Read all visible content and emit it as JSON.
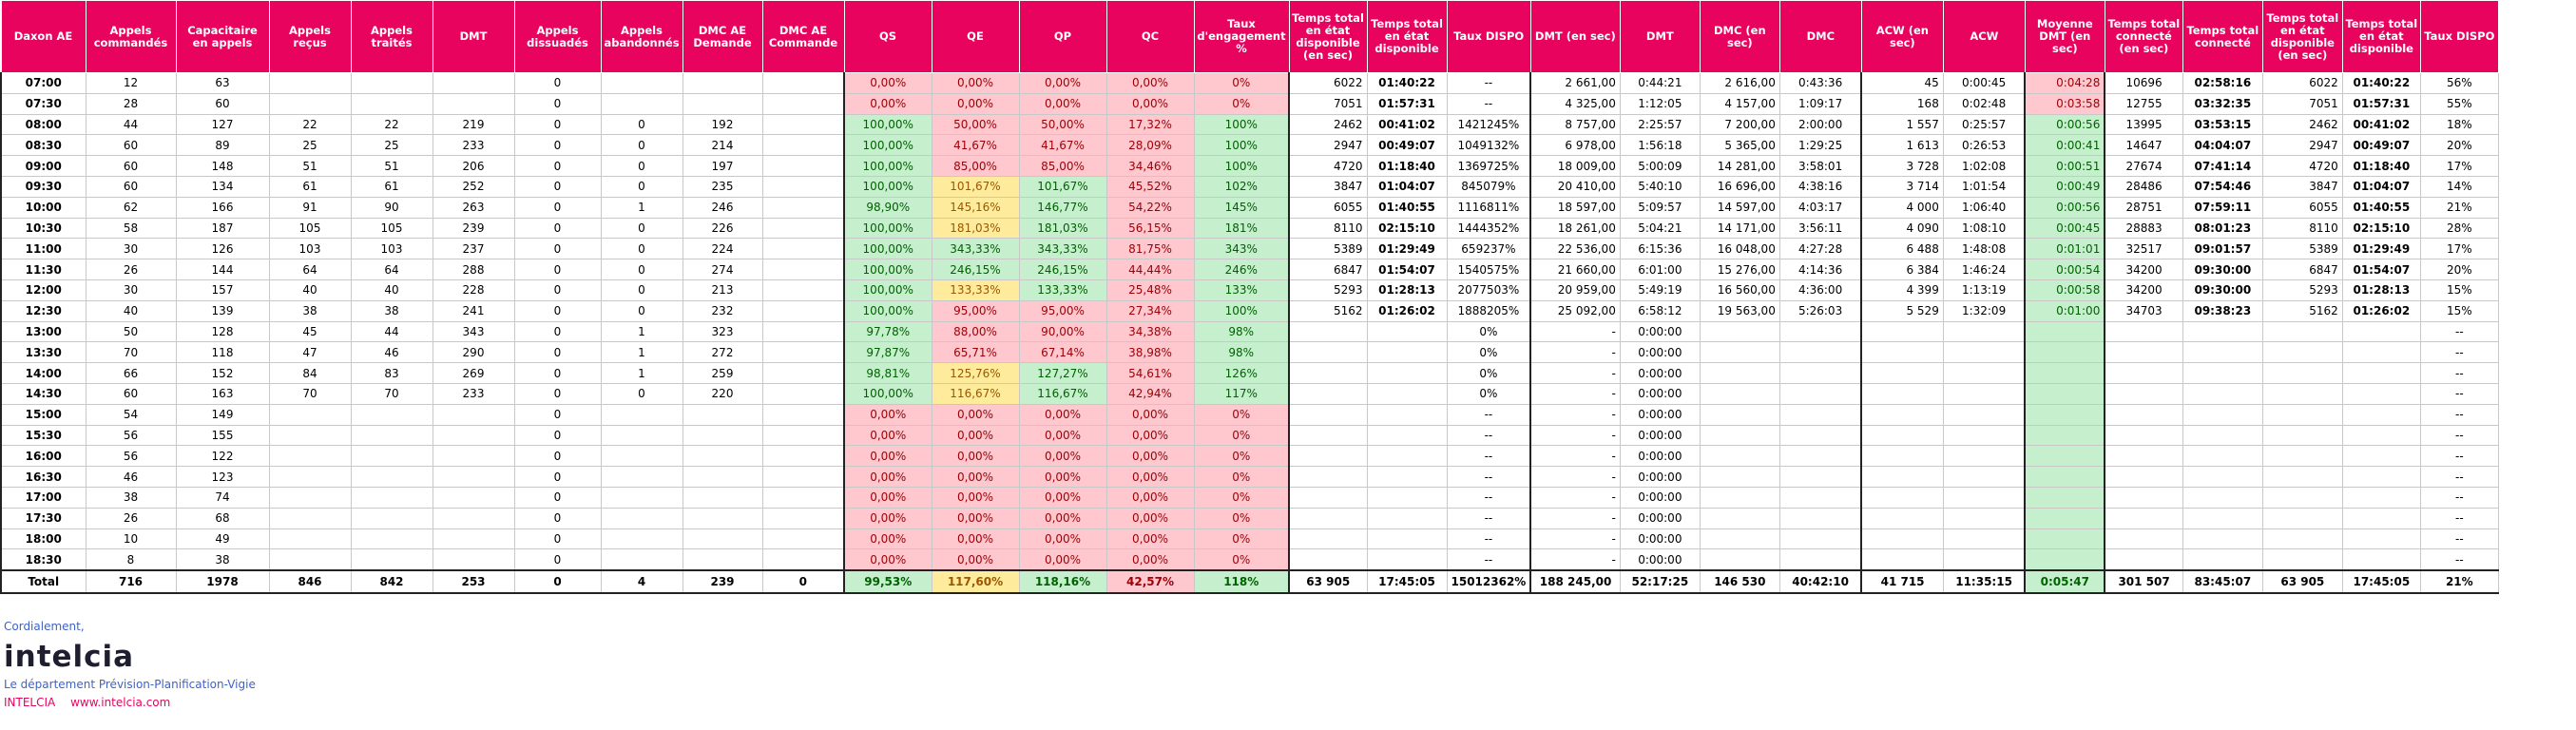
{
  "headers": [
    "Daxon AE",
    "Appels commandés",
    "Capacitaire en appels",
    "Appels reçus",
    "Appels traités",
    "DMT",
    "Appels dissuadés",
    "Appels abandonnés",
    "DMC AE Demande",
    "DMC AE Commande",
    "QS",
    "QE",
    "QP",
    "QC",
    "Taux d'engagement %",
    "Temps total en état disponible (en sec)",
    "Temps total en état disponible",
    "Taux DISPO",
    "DMT (en sec)",
    "DMT",
    "DMC (en sec)",
    "DMC",
    "ACW (en sec)",
    "ACW",
    "Moyenne DMT (en sec)",
    "Temps total connecté (en sec)",
    "Temps total connecté",
    "Temps total en état disponible (en sec)",
    "Temps total en état disponible",
    "Taux DISPO"
  ],
  "rows": [
    [
      "07:00",
      "12",
      "63",
      "",
      "",
      "",
      "0",
      "",
      "",
      "",
      "0,00%",
      "0,00%",
      "0,00%",
      "0,00%",
      "0%",
      "6022",
      "01:40:22",
      "--",
      "2 661,00",
      "0:44:21",
      "2 616,00",
      "0:43:36",
      "45",
      "0:00:45",
      "0:04:28",
      "10696",
      "02:58:16",
      "6022",
      "01:40:22",
      "56%"
    ],
    [
      "07:30",
      "28",
      "60",
      "",
      "",
      "",
      "0",
      "",
      "",
      "",
      "0,00%",
      "0,00%",
      "0,00%",
      "0,00%",
      "0%",
      "7051",
      "01:57:31",
      "--",
      "4 325,00",
      "1:12:05",
      "4 157,00",
      "1:09:17",
      "168",
      "0:02:48",
      "0:03:58",
      "12755",
      "03:32:35",
      "7051",
      "01:57:31",
      "55%"
    ],
    [
      "08:00",
      "44",
      "127",
      "22",
      "22",
      "219",
      "0",
      "0",
      "192",
      "",
      "100,00%",
      "50,00%",
      "50,00%",
      "17,32%",
      "100%",
      "2462",
      "00:41:02",
      "1421245%",
      "8 757,00",
      "2:25:57",
      "7 200,00",
      "2:00:00",
      "1 557",
      "0:25:57",
      "0:00:56",
      "13995",
      "03:53:15",
      "2462",
      "00:41:02",
      "18%"
    ],
    [
      "08:30",
      "60",
      "89",
      "25",
      "25",
      "233",
      "0",
      "0",
      "214",
      "",
      "100,00%",
      "41,67%",
      "41,67%",
      "28,09%",
      "100%",
      "2947",
      "00:49:07",
      "1049132%",
      "6 978,00",
      "1:56:18",
      "5 365,00",
      "1:29:25",
      "1 613",
      "0:26:53",
      "0:00:41",
      "14647",
      "04:04:07",
      "2947",
      "00:49:07",
      "20%"
    ],
    [
      "09:00",
      "60",
      "148",
      "51",
      "51",
      "206",
      "0",
      "0",
      "197",
      "",
      "100,00%",
      "85,00%",
      "85,00%",
      "34,46%",
      "100%",
      "4720",
      "01:18:40",
      "1369725%",
      "18 009,00",
      "5:00:09",
      "14 281,00",
      "3:58:01",
      "3 728",
      "1:02:08",
      "0:00:51",
      "27674",
      "07:41:14",
      "4720",
      "01:18:40",
      "17%"
    ],
    [
      "09:30",
      "60",
      "134",
      "61",
      "61",
      "252",
      "0",
      "0",
      "235",
      "",
      "100,00%",
      "101,67%",
      "101,67%",
      "45,52%",
      "102%",
      "3847",
      "01:04:07",
      "845079%",
      "20 410,00",
      "5:40:10",
      "16 696,00",
      "4:38:16",
      "3 714",
      "1:01:54",
      "0:00:49",
      "28486",
      "07:54:46",
      "3847",
      "01:04:07",
      "14%"
    ],
    [
      "10:00",
      "62",
      "166",
      "91",
      "90",
      "263",
      "0",
      "1",
      "246",
      "",
      "98,90%",
      "145,16%",
      "146,77%",
      "54,22%",
      "145%",
      "6055",
      "01:40:55",
      "1116811%",
      "18 597,00",
      "5:09:57",
      "14 597,00",
      "4:03:17",
      "4 000",
      "1:06:40",
      "0:00:56",
      "28751",
      "07:59:11",
      "6055",
      "01:40:55",
      "21%"
    ],
    [
      "10:30",
      "58",
      "187",
      "105",
      "105",
      "239",
      "0",
      "0",
      "226",
      "",
      "100,00%",
      "181,03%",
      "181,03%",
      "56,15%",
      "181%",
      "8110",
      "02:15:10",
      "1444352%",
      "18 261,00",
      "5:04:21",
      "14 171,00",
      "3:56:11",
      "4 090",
      "1:08:10",
      "0:00:45",
      "28883",
      "08:01:23",
      "8110",
      "02:15:10",
      "28%"
    ],
    [
      "11:00",
      "30",
      "126",
      "103",
      "103",
      "237",
      "0",
      "0",
      "224",
      "",
      "100,00%",
      "343,33%",
      "343,33%",
      "81,75%",
      "343%",
      "5389",
      "01:29:49",
      "659237%",
      "22 536,00",
      "6:15:36",
      "16 048,00",
      "4:27:28",
      "6 488",
      "1:48:08",
      "0:01:01",
      "32517",
      "09:01:57",
      "5389",
      "01:29:49",
      "17%"
    ],
    [
      "11:30",
      "26",
      "144",
      "64",
      "64",
      "288",
      "0",
      "0",
      "274",
      "",
      "100,00%",
      "246,15%",
      "246,15%",
      "44,44%",
      "246%",
      "6847",
      "01:54:07",
      "1540575%",
      "21 660,00",
      "6:01:00",
      "15 276,00",
      "4:14:36",
      "6 384",
      "1:46:24",
      "0:00:54",
      "34200",
      "09:30:00",
      "6847",
      "01:54:07",
      "20%"
    ],
    [
      "12:00",
      "30",
      "157",
      "40",
      "40",
      "228",
      "0",
      "0",
      "213",
      "",
      "100,00%",
      "133,33%",
      "133,33%",
      "25,48%",
      "133%",
      "5293",
      "01:28:13",
      "2077503%",
      "20 959,00",
      "5:49:19",
      "16 560,00",
      "4:36:00",
      "4 399",
      "1:13:19",
      "0:00:58",
      "34200",
      "09:30:00",
      "5293",
      "01:28:13",
      "15%"
    ],
    [
      "12:30",
      "40",
      "139",
      "38",
      "38",
      "241",
      "0",
      "0",
      "232",
      "",
      "100,00%",
      "95,00%",
      "95,00%",
      "27,34%",
      "100%",
      "5162",
      "01:26:02",
      "1888205%",
      "25 092,00",
      "6:58:12",
      "19 563,00",
      "5:26:03",
      "5 529",
      "1:32:09",
      "0:01:00",
      "34703",
      "09:38:23",
      "5162",
      "01:26:02",
      "15%"
    ],
    [
      "13:00",
      "50",
      "128",
      "45",
      "44",
      "343",
      "0",
      "1",
      "323",
      "",
      "97,78%",
      "88,00%",
      "90,00%",
      "34,38%",
      "98%",
      "",
      "",
      "0%",
      "-",
      "0:00:00",
      "",
      "",
      "",
      "",
      "",
      "",
      "",
      "",
      "",
      "--"
    ],
    [
      "13:30",
      "70",
      "118",
      "47",
      "46",
      "290",
      "0",
      "1",
      "272",
      "",
      "97,87%",
      "65,71%",
      "67,14%",
      "38,98%",
      "98%",
      "",
      "",
      "0%",
      "-",
      "0:00:00",
      "",
      "",
      "",
      "",
      "",
      "",
      "",
      "",
      "",
      "--"
    ],
    [
      "14:00",
      "66",
      "152",
      "84",
      "83",
      "269",
      "0",
      "1",
      "259",
      "",
      "98,81%",
      "125,76%",
      "127,27%",
      "54,61%",
      "126%",
      "",
      "",
      "0%",
      "-",
      "0:00:00",
      "",
      "",
      "",
      "",
      "",
      "",
      "",
      "",
      "",
      "--"
    ],
    [
      "14:30",
      "60",
      "163",
      "70",
      "70",
      "233",
      "0",
      "0",
      "220",
      "",
      "100,00%",
      "116,67%",
      "116,67%",
      "42,94%",
      "117%",
      "",
      "",
      "0%",
      "-",
      "0:00:00",
      "",
      "",
      "",
      "",
      "",
      "",
      "",
      "",
      "",
      "--"
    ],
    [
      "15:00",
      "54",
      "149",
      "",
      "",
      "",
      "0",
      "",
      "",
      "",
      "0,00%",
      "0,00%",
      "0,00%",
      "0,00%",
      "0%",
      "",
      "",
      "--",
      "-",
      "0:00:00",
      "",
      "",
      "",
      "",
      "",
      "",
      "",
      "",
      "",
      "--"
    ],
    [
      "15:30",
      "56",
      "155",
      "",
      "",
      "",
      "0",
      "",
      "",
      "",
      "0,00%",
      "0,00%",
      "0,00%",
      "0,00%",
      "0%",
      "",
      "",
      "--",
      "-",
      "0:00:00",
      "",
      "",
      "",
      "",
      "",
      "",
      "",
      "",
      "",
      "--"
    ],
    [
      "16:00",
      "56",
      "122",
      "",
      "",
      "",
      "0",
      "",
      "",
      "",
      "0,00%",
      "0,00%",
      "0,00%",
      "0,00%",
      "0%",
      "",
      "",
      "--",
      "-",
      "0:00:00",
      "",
      "",
      "",
      "",
      "",
      "",
      "",
      "",
      "",
      "--"
    ],
    [
      "16:30",
      "46",
      "123",
      "",
      "",
      "",
      "0",
      "",
      "",
      "",
      "0,00%",
      "0,00%",
      "0,00%",
      "0,00%",
      "0%",
      "",
      "",
      "--",
      "-",
      "0:00:00",
      "",
      "",
      "",
      "",
      "",
      "",
      "",
      "",
      "",
      "--"
    ],
    [
      "17:00",
      "38",
      "74",
      "",
      "",
      "",
      "0",
      "",
      "",
      "",
      "0,00%",
      "0,00%",
      "0,00%",
      "0,00%",
      "0%",
      "",
      "",
      "--",
      "-",
      "0:00:00",
      "",
      "",
      "",
      "",
      "",
      "",
      "",
      "",
      "",
      "--"
    ],
    [
      "17:30",
      "26",
      "68",
      "",
      "",
      "",
      "0",
      "",
      "",
      "",
      "0,00%",
      "0,00%",
      "0,00%",
      "0,00%",
      "0%",
      "",
      "",
      "--",
      "-",
      "0:00:00",
      "",
      "",
      "",
      "",
      "",
      "",
      "",
      "",
      "",
      "--"
    ],
    [
      "18:00",
      "10",
      "49",
      "",
      "",
      "",
      "0",
      "",
      "",
      "",
      "0,00%",
      "0,00%",
      "0,00%",
      "0,00%",
      "0%",
      "",
      "",
      "--",
      "-",
      "0:00:00",
      "",
      "",
      "",
      "",
      "",
      "",
      "",
      "",
      "",
      "--"
    ],
    [
      "18:30",
      "8",
      "38",
      "",
      "",
      "",
      "0",
      "",
      "",
      "",
      "0,00%",
      "0,00%",
      "0,00%",
      "0,00%",
      "0%",
      "",
      "",
      "--",
      "-",
      "0:00:00",
      "",
      "",
      "",
      "",
      "",
      "",
      "",
      "",
      "",
      "--"
    ]
  ],
  "total": [
    "Total",
    "716",
    "1978",
    "846",
    "842",
    "253",
    "0",
    "4",
    "239",
    "0",
    "99,53%",
    "117,60%",
    "118,16%",
    "42,57%",
    "118%",
    "63 905",
    "17:45:05",
    "15012362%",
    "188 245,00",
    "52:17:25",
    "146 530",
    "40:42:10",
    "41 715",
    "11:35:15",
    "0:05:47",
    "301 507",
    "83:45:07",
    "63 905",
    "17:45:05",
    "21%"
  ],
  "colors": {
    "header_bg": "#e8035f",
    "good_bg": "#c6efce",
    "bad_bg": "#ffc7ce",
    "warn_bg": "#ffeb9c"
  },
  "signature": {
    "salutation": "Cordialement,",
    "logo_text": "intelcia",
    "department": "Le département Prévision-Planification-Vigie",
    "company": "INTELCIA",
    "website": "www.intelcia.com"
  }
}
